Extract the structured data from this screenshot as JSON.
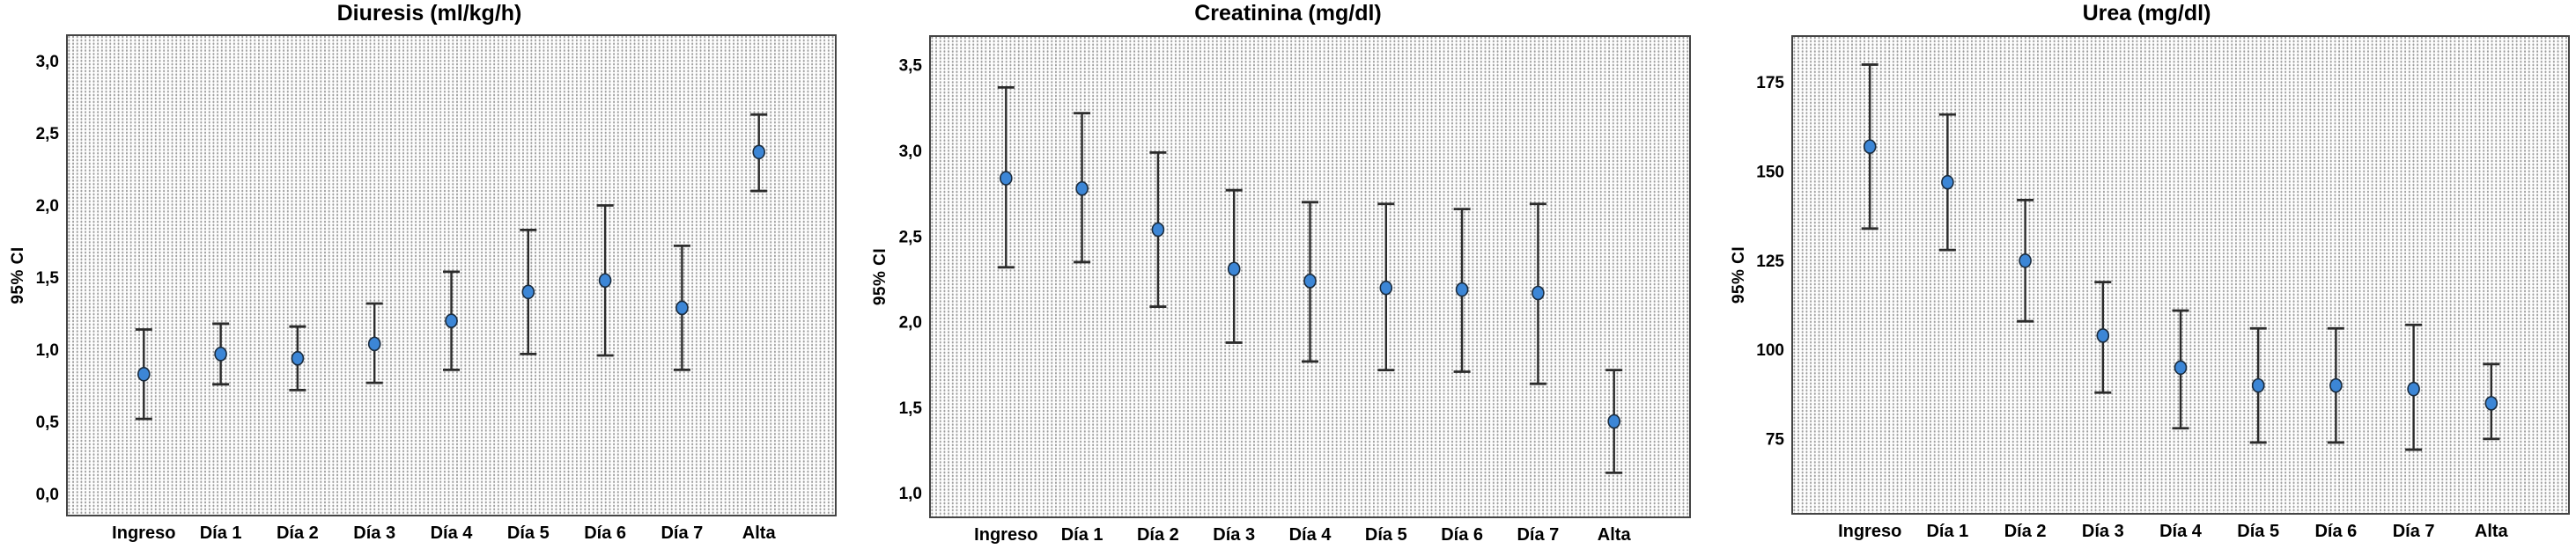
{
  "figure": {
    "background": "#ffffff",
    "description": "Three 95% CI error-bar charts over hospital stay days"
  },
  "colors": {
    "marker_fill": "#3C86D6",
    "marker_stroke": "#1B2C3E",
    "errorbar": "#2B2B2B",
    "plot_border": "#444444",
    "text": "#000000",
    "plot_background": "#FDFDFD",
    "pattern_dot": "#696969"
  },
  "chart_data": [
    {
      "type": "errorbar",
      "title": "Diuresis (ml/kg/h)",
      "ylabel": "95% CI",
      "xlabel": "",
      "grid": false,
      "legend_position": "none",
      "categories": [
        "Ingreso",
        "Día 1",
        "Día 2",
        "Día 3",
        "Día 4",
        "Día 5",
        "Día 6",
        "Día 7",
        "Alta"
      ],
      "mean": [
        0.83,
        0.97,
        0.94,
        1.04,
        1.2,
        1.4,
        1.48,
        1.29,
        2.37
      ],
      "lower": [
        0.52,
        0.76,
        0.72,
        0.77,
        0.86,
        0.97,
        0.96,
        0.86,
        2.1
      ],
      "upper": [
        1.14,
        1.18,
        1.16,
        1.32,
        1.54,
        1.83,
        2.0,
        1.72,
        2.63
      ],
      "yticks": [
        {
          "label": "3,0",
          "value": 3.0
        },
        {
          "label": "2,5",
          "value": 2.5
        },
        {
          "label": "2,0",
          "value": 2.0
        },
        {
          "label": "1,5",
          "value": 1.5
        },
        {
          "label": "1,0",
          "value": 1.0
        },
        {
          "label": "0,5",
          "value": 0.5
        },
        {
          "label": "0,0",
          "value": 0.0
        }
      ],
      "ylim": [
        -0.15,
        3.18
      ]
    },
    {
      "type": "errorbar",
      "title": "Creatinina (mg/dl)",
      "ylabel": "95% CI",
      "xlabel": "",
      "grid": false,
      "legend_position": "none",
      "categories": [
        "Ingreso",
        "Día 1",
        "Día 2",
        "Día 3",
        "Día 4",
        "Día 5",
        "Día 6",
        "Día 7",
        "Alta"
      ],
      "mean": [
        2.84,
        2.78,
        2.54,
        2.31,
        2.24,
        2.2,
        2.19,
        2.17,
        1.42
      ],
      "lower": [
        2.32,
        2.35,
        2.09,
        1.88,
        1.77,
        1.72,
        1.71,
        1.64,
        1.12
      ],
      "upper": [
        3.37,
        3.22,
        2.99,
        2.77,
        2.7,
        2.69,
        2.66,
        2.69,
        1.72
      ],
      "yticks": [
        {
          "label": "3,5",
          "value": 3.5
        },
        {
          "label": "3,0",
          "value": 3.0
        },
        {
          "label": "2,5",
          "value": 2.5
        },
        {
          "label": "2,0",
          "value": 2.0
        },
        {
          "label": "1,5",
          "value": 1.5
        },
        {
          "label": "1,0",
          "value": 1.0
        }
      ],
      "ylim": [
        0.86,
        3.67
      ]
    },
    {
      "type": "errorbar",
      "title": "Urea (mg/dl)",
      "ylabel": "95% CI",
      "xlabel": "",
      "grid": false,
      "legend_position": "none",
      "categories": [
        "Ingreso",
        "Día 1",
        "Día 2",
        "Día 3",
        "Día 4",
        "Día 5",
        "Día 6",
        "Día 7",
        "Alta"
      ],
      "mean": [
        157,
        147,
        125,
        104,
        95,
        90,
        90,
        89,
        85
      ],
      "lower": [
        134,
        128,
        108,
        88,
        78,
        74,
        74,
        72,
        75
      ],
      "upper": [
        180,
        166,
        142,
        119,
        111,
        106,
        106,
        107,
        96
      ],
      "yticks": [
        {
          "label": "175",
          "value": 175
        },
        {
          "label": "150",
          "value": 150
        },
        {
          "label": "125",
          "value": 125
        },
        {
          "label": "100",
          "value": 100
        },
        {
          "label": "75",
          "value": 75
        }
      ],
      "ylim": [
        54,
        188
      ]
    }
  ]
}
